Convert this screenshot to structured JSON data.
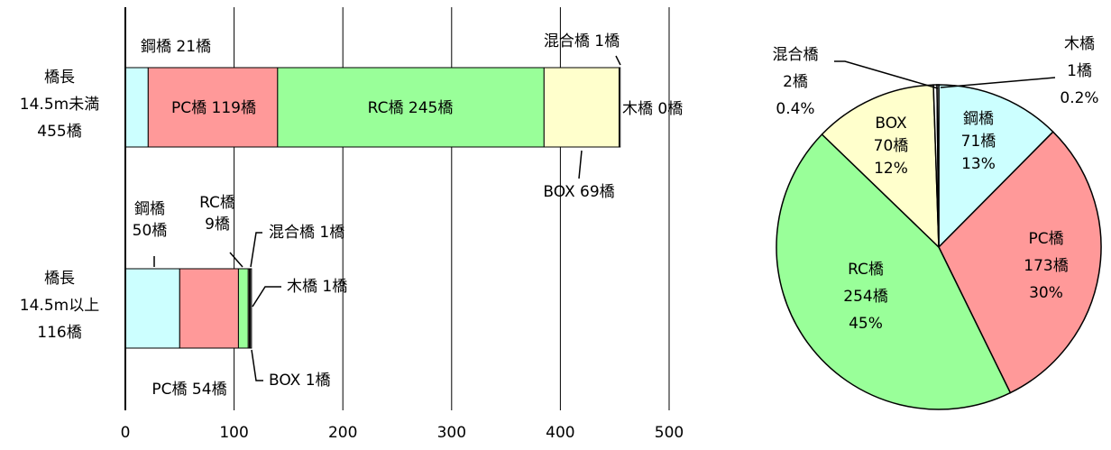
{
  "chart_data": [
    {
      "type": "bar",
      "orientation": "horizontal",
      "stacked": true,
      "categories": [
        {
          "lines": [
            "橋長",
            "14.5m未満",
            "455橋"
          ]
        },
        {
          "lines": [
            "橋長",
            "14.5m以上",
            "116橋"
          ]
        }
      ],
      "series": [
        {
          "key": "steel",
          "color": "#ccffff",
          "values": [
            21,
            50
          ],
          "labels": [
            "鋼橋 21橋",
            [
              "鋼橋",
              "50橋"
            ]
          ]
        },
        {
          "key": "pc",
          "color": "#ff9999",
          "values": [
            119,
            54
          ],
          "labels": [
            "PC橋 119橋",
            "PC橋 54橋"
          ]
        },
        {
          "key": "rc",
          "color": "#99ff99",
          "values": [
            245,
            9
          ],
          "labels": [
            "RC橋 245橋",
            [
              "RC橋",
              "9橋"
            ]
          ]
        },
        {
          "key": "box",
          "color": "#ffffcc",
          "values": [
            69,
            1
          ],
          "labels": [
            "BOX 69橋",
            "BOX 1橋"
          ]
        },
        {
          "key": "wood",
          "color": "#ffffff",
          "values": [
            0,
            1
          ],
          "labels": [
            "木橋 0橋",
            "木橋 1橋"
          ]
        },
        {
          "key": "mixed",
          "color": "#ffffff",
          "values": [
            1,
            1
          ],
          "labels": [
            "混合橋 1橋",
            "混合橋 1橋"
          ]
        }
      ],
      "xlim": [
        0,
        500
      ],
      "xticks": [
        0,
        100,
        200,
        300,
        400,
        500
      ],
      "grid": "vertical"
    },
    {
      "type": "pie",
      "slices": [
        {
          "key": "steel",
          "value": 71,
          "percent": 13,
          "color": "#ccffff",
          "lines": [
            "鋼橋",
            "71橋",
            "13%"
          ]
        },
        {
          "key": "pc",
          "value": 173,
          "percent": 30,
          "color": "#ff9999",
          "lines": [
            "PC橋",
            "173橋",
            "30%"
          ]
        },
        {
          "key": "rc",
          "value": 254,
          "percent": 45,
          "color": "#99ff99",
          "lines": [
            "RC橋",
            "254橋",
            "45%"
          ]
        },
        {
          "key": "box",
          "value": 70,
          "percent": 12,
          "color": "#ffffcc",
          "lines": [
            "BOX",
            "70橋",
            "12%"
          ]
        },
        {
          "key": "mixed",
          "value": 2,
          "percent": 0.4,
          "color": "#ffffff",
          "lines": [
            "混合橋",
            "2橋",
            "0.4%"
          ]
        },
        {
          "key": "wood",
          "value": 1,
          "percent": 0.2,
          "color": "#ffffff",
          "lines": [
            "木橋",
            "1橋",
            "0.2%"
          ]
        }
      ]
    }
  ]
}
